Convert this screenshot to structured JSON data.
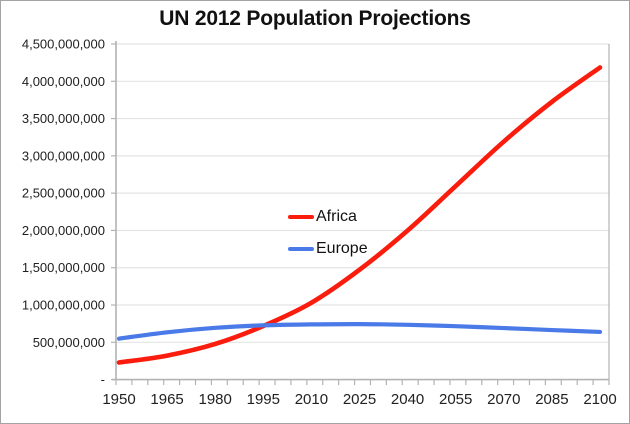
{
  "chart_data": {
    "type": "line",
    "title": "UN 2012 Population Projections",
    "x_years": [
      1950,
      1965,
      1980,
      1995,
      2010,
      2025,
      2040,
      2055,
      2070,
      2085,
      2100
    ],
    "series": [
      {
        "name": "Africa",
        "color": "#fa1c0c",
        "values": [
          229000000,
          322000000,
          478000000,
          719000000,
          1031000000,
          1473000000,
          1999000000,
          2595000000,
          3192000000,
          3724000000,
          4185000000
        ]
      },
      {
        "name": "Europe",
        "color": "#4a7ae8",
        "values": [
          549000000,
          634000000,
          694000000,
          728000000,
          740000000,
          744000000,
          735000000,
          716000000,
          691000000,
          664000000,
          639000000
        ]
      }
    ],
    "xlim": [
      1950,
      2100
    ],
    "ylim": [
      0,
      4500000000
    ],
    "x_tick_labels": [
      "1950",
      "1965",
      "1980",
      "1995",
      "2010",
      "2025",
      "2040",
      "2055",
      "2070",
      "2085",
      "2100"
    ],
    "y_tick_labels_top_to_bottom": [
      "4,500,000,000",
      "4,000,000,000",
      "3,500,000,000",
      "3,000,000,000",
      "2,500,000,000",
      "2,000,000,000",
      "1,500,000,000",
      "1,000,000,000",
      "500,000,000",
      "-"
    ],
    "minor_x_tick_interval_years": 5,
    "grid": "horizontal",
    "legend": {
      "position": "inside-plot-center-left",
      "entries": [
        "Africa",
        "Europe"
      ]
    }
  },
  "colors": {
    "grid": "#e4e4e4",
    "axis": "#b3b3b3",
    "tick_text": "#212121",
    "frame_border": "#a3a3a3"
  }
}
